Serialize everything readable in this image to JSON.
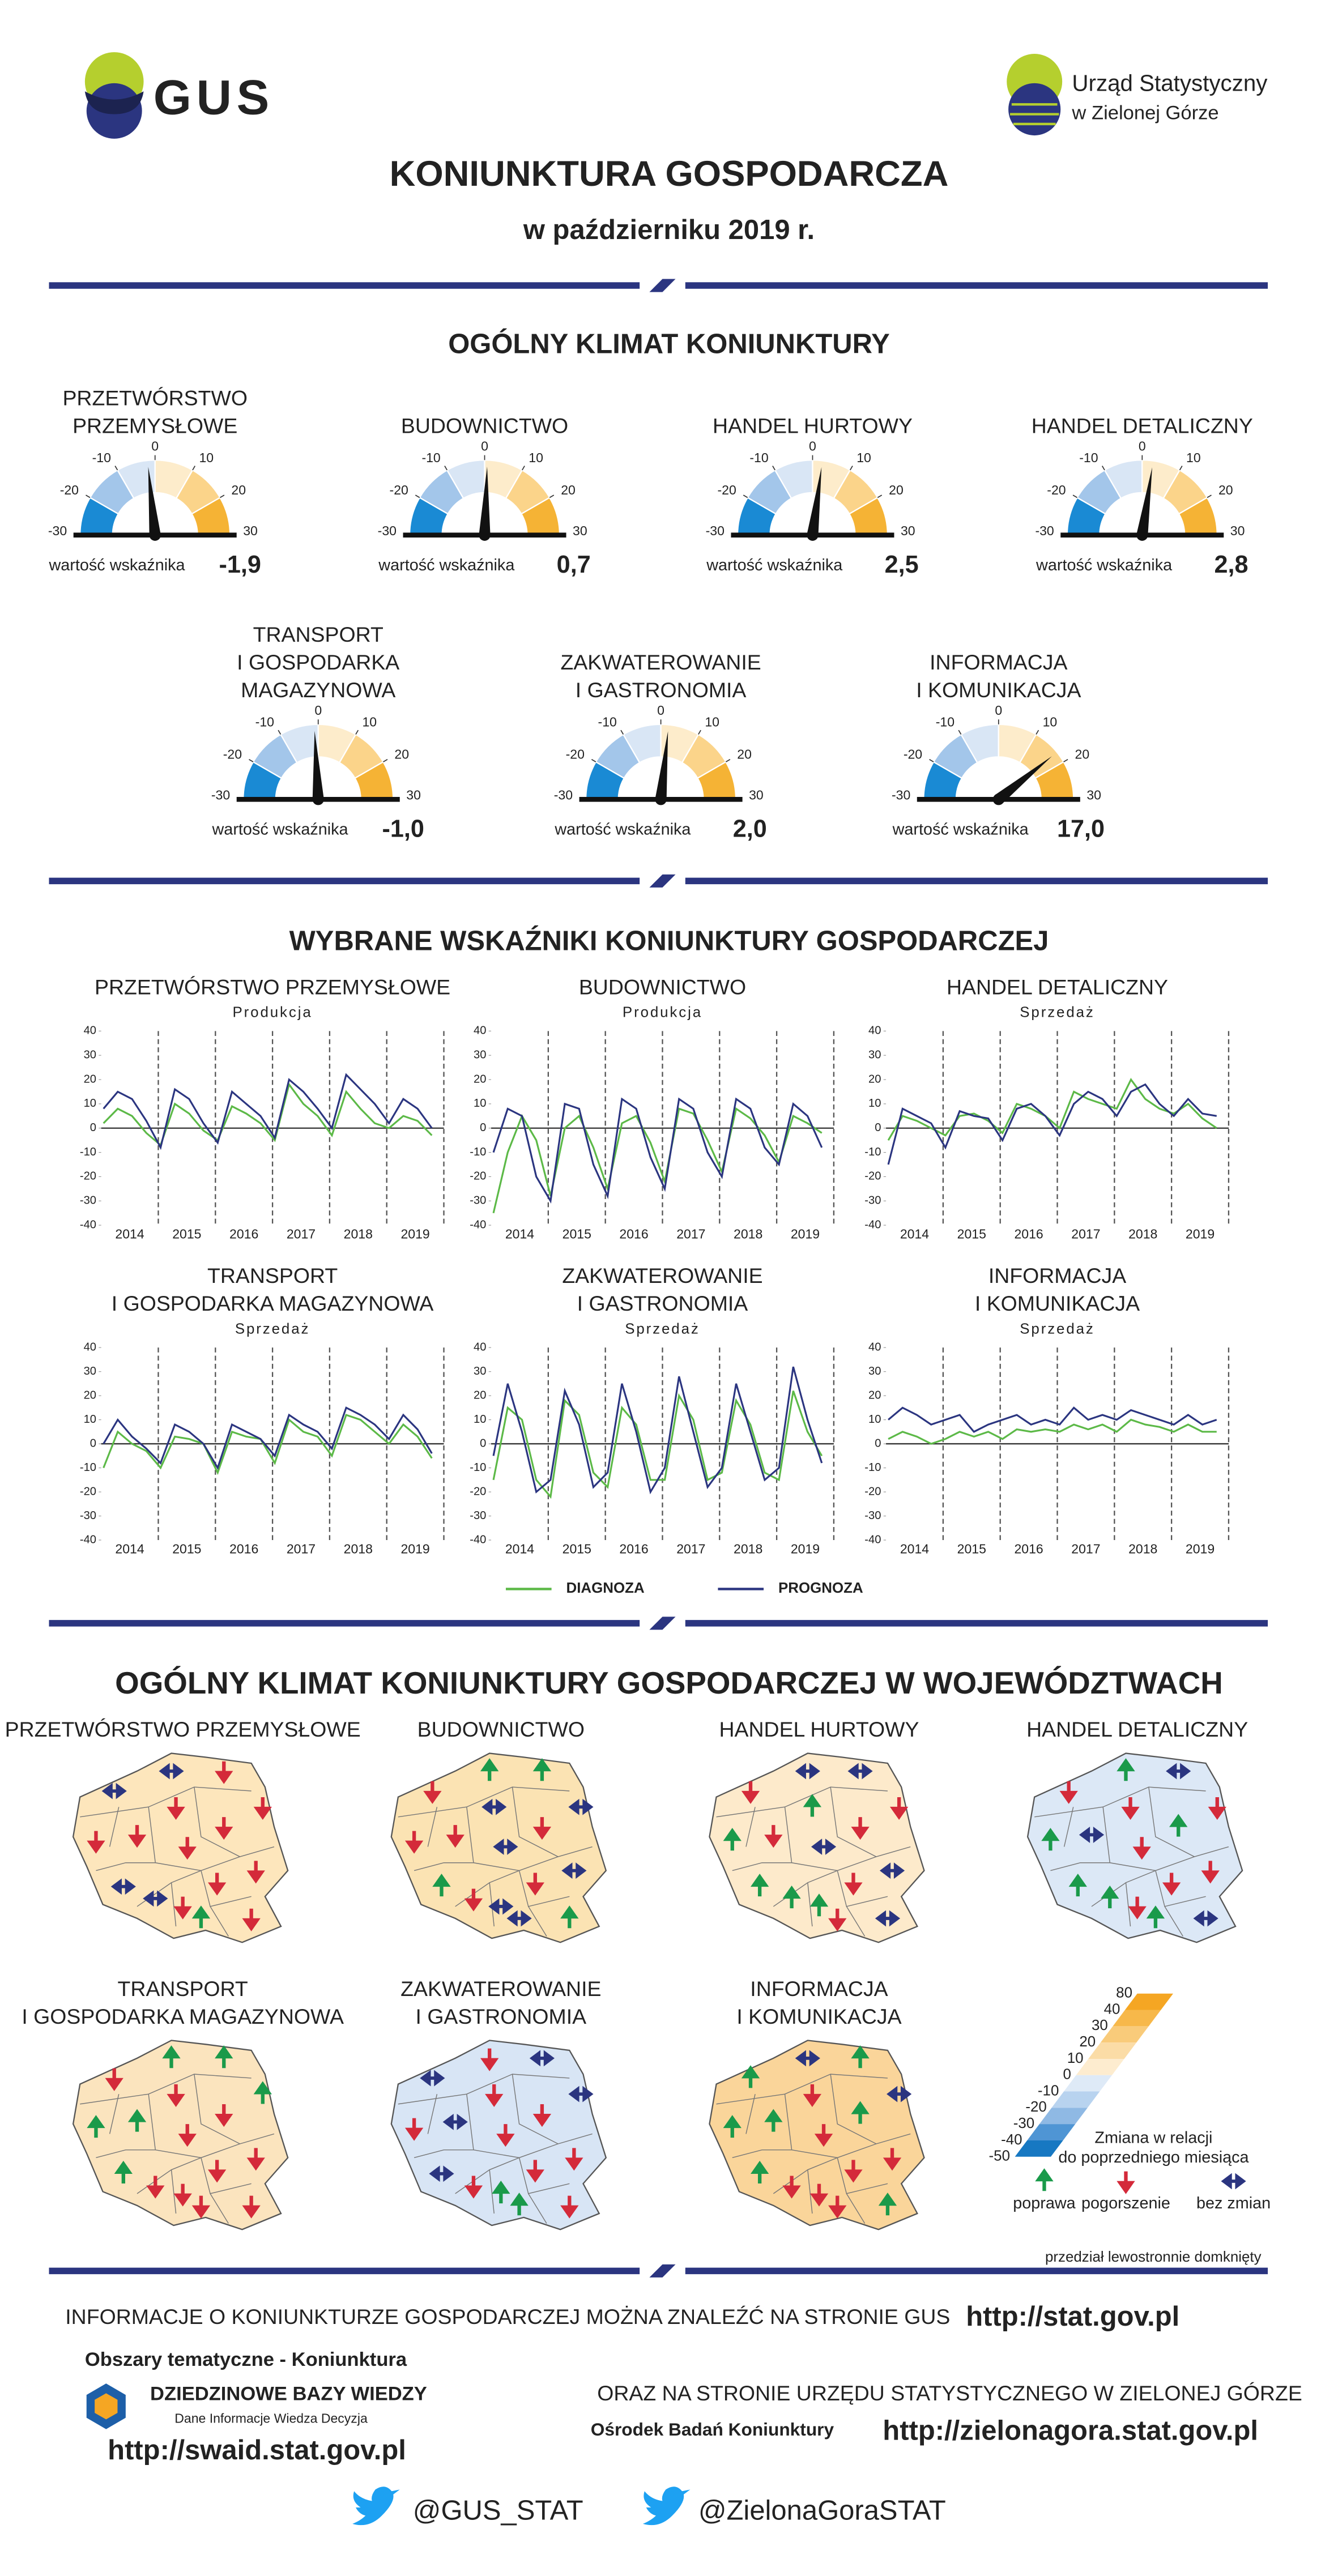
{
  "header": {
    "logo": "GUS",
    "office": [
      "Urząd Statystyczny",
      "w Zielonej Górze"
    ],
    "title": "KONIUNKTURA GOSPODARCZA",
    "subtitle": "w październiku 2019 r."
  },
  "gauges": {
    "title": "OGÓLNY KLIMAT KONIUNKTURY",
    "value_caption": "wartość wskaźnika",
    "lim": [
      -30,
      30
    ],
    "ticks": [
      -30,
      -20,
      -10,
      0,
      10,
      20,
      30
    ],
    "colors": [
      "#1a8ad4",
      "#a3c6ea",
      "#d9e6f5",
      "#fdeccb",
      "#fbd48a",
      "#f5b335"
    ],
    "items": [
      {
        "name": [
          "PRZETWÓRSTWO",
          "PRZEMYSŁOWE"
        ],
        "value": -1.9,
        "value_label": "-1,9"
      },
      {
        "name": [
          "BUDOWNICTWO"
        ],
        "value": 0.7,
        "value_label": "0,7"
      },
      {
        "name": [
          "HANDEL HURTOWY"
        ],
        "value": 2.5,
        "value_label": "2,5"
      },
      {
        "name": [
          "HANDEL DETALICZNY"
        ],
        "value": 2.8,
        "value_label": "2,8"
      },
      {
        "name": [
          "TRANSPORT",
          "I GOSPODARKA",
          "MAGAZYNOWA"
        ],
        "value": -1.0,
        "value_label": "-1,0"
      },
      {
        "name": [
          "ZAKWATEROWANIE",
          "I GASTRONOMIA"
        ],
        "value": 2.0,
        "value_label": "2,0"
      },
      {
        "name": [
          "INFORMACJA",
          "I KOMUNIKACJA"
        ],
        "value": 17.0,
        "value_label": "17,0"
      }
    ]
  },
  "indicators": {
    "title": "WYBRANE WSKAŹNIKI KONIUNKTURY GOSPODARCZEJ",
    "legend": [
      {
        "name": "DIAGNOZA",
        "color": "#5cb947"
      },
      {
        "name": "PROGNOZA",
        "color": "#2b3580"
      }
    ],
    "charts": [
      {
        "type": "line",
        "title": [
          "PRZETWÓRSTWO PRZEMYSŁOWE"
        ],
        "subtitle": "Produkcja",
        "categories": [
          "2014",
          "2015",
          "2016",
          "2017",
          "2018",
          "2019"
        ],
        "ylim": [
          -40,
          40
        ],
        "yticks": [
          40,
          30,
          20,
          10,
          0,
          -10,
          -20,
          -30,
          -40
        ],
        "series": [
          {
            "values": [
              2,
              8,
              5,
              -2,
              -7,
              10,
              6,
              -1,
              -5,
              9,
              6,
              2,
              -5,
              18,
              10,
              5,
              -3,
              15,
              8,
              2,
              0,
              5,
              3,
              -3
            ]
          },
          {
            "values": [
              8,
              15,
              12,
              3,
              -8,
              16,
              12,
              2,
              -6,
              15,
              10,
              5,
              -4,
              20,
              15,
              8,
              0,
              22,
              16,
              10,
              2,
              12,
              8,
              0
            ]
          }
        ]
      },
      {
        "type": "line",
        "title": [
          "BUDOWNICTWO"
        ],
        "subtitle": "Produkcja",
        "categories": [
          "2014",
          "2015",
          "2016",
          "2017",
          "2018",
          "2019"
        ],
        "ylim": [
          -40,
          40
        ],
        "yticks": [
          40,
          30,
          20,
          10,
          0,
          -10,
          -20,
          -30,
          -40
        ],
        "series": [
          {
            "values": [
              -35,
              -10,
              5,
              -5,
              -28,
              0,
              5,
              -8,
              -25,
              2,
              5,
              -6,
              -22,
              8,
              6,
              -5,
              -18,
              8,
              4,
              -3,
              -14,
              5,
              2,
              -2
            ]
          },
          {
            "values": [
              -10,
              8,
              5,
              -20,
              -30,
              10,
              8,
              -15,
              -28,
              12,
              8,
              -12,
              -25,
              12,
              8,
              -10,
              -20,
              12,
              8,
              -8,
              -15,
              10,
              5,
              -8
            ]
          }
        ]
      },
      {
        "type": "line",
        "title": [
          "HANDEL DETALICZNY"
        ],
        "subtitle": "Sprzedaż",
        "categories": [
          "2014",
          "2015",
          "2016",
          "2017",
          "2018",
          "2019"
        ],
        "ylim": [
          -40,
          40
        ],
        "yticks": [
          40,
          30,
          20,
          10,
          0,
          -10,
          -20,
          -30,
          -40
        ],
        "series": [
          {
            "values": [
              -5,
              5,
              3,
              0,
              -3,
              5,
              6,
              3,
              -2,
              10,
              8,
              5,
              0,
              15,
              12,
              10,
              8,
              20,
              12,
              8,
              6,
              10,
              4,
              0
            ]
          },
          {
            "values": [
              -15,
              8,
              5,
              2,
              -8,
              7,
              5,
              4,
              -5,
              8,
              10,
              5,
              -3,
              10,
              15,
              12,
              5,
              15,
              18,
              10,
              5,
              12,
              6,
              5
            ]
          }
        ]
      },
      {
        "type": "line",
        "title": [
          "TRANSPORT",
          "I GOSPODARKA MAGAZYNOWA"
        ],
        "subtitle": "Sprzedaż",
        "categories": [
          "2014",
          "2015",
          "2016",
          "2017",
          "2018",
          "2019"
        ],
        "ylim": [
          -40,
          40
        ],
        "yticks": [
          40,
          30,
          20,
          10,
          0,
          -10,
          -20,
          -30,
          -40
        ],
        "series": [
          {
            "values": [
              -10,
              5,
              0,
              -3,
              -10,
              3,
              2,
              0,
              -12,
              5,
              3,
              2,
              -8,
              10,
              5,
              3,
              -5,
              12,
              10,
              5,
              0,
              8,
              3,
              -6
            ]
          },
          {
            "values": [
              0,
              10,
              3,
              -2,
              -8,
              8,
              5,
              0,
              -10,
              8,
              5,
              2,
              -5,
              12,
              8,
              5,
              -2,
              15,
              12,
              8,
              2,
              12,
              6,
              -4
            ]
          }
        ]
      },
      {
        "type": "line",
        "title": [
          "ZAKWATEROWANIE",
          "I GASTRONOMIA"
        ],
        "subtitle": "Sprzedaż",
        "categories": [
          "2014",
          "2015",
          "2016",
          "2017",
          "2018",
          "2019"
        ],
        "ylim": [
          -40,
          40
        ],
        "yticks": [
          40,
          30,
          20,
          10,
          0,
          -10,
          -20,
          -30,
          -40
        ],
        "series": [
          {
            "values": [
              -15,
              15,
              10,
              -15,
              -22,
              18,
              12,
              -12,
              -18,
              15,
              8,
              -15,
              -15,
              20,
              10,
              -15,
              -12,
              18,
              8,
              -12,
              -15,
              22,
              5,
              -5
            ]
          },
          {
            "values": [
              -5,
              25,
              5,
              -20,
              -15,
              22,
              8,
              -18,
              -12,
              25,
              5,
              -20,
              -10,
              28,
              5,
              -18,
              -10,
              25,
              5,
              -15,
              -10,
              32,
              10,
              -8
            ]
          }
        ]
      },
      {
        "type": "line",
        "title": [
          "INFORMACJA",
          "I KOMUNIKACJA"
        ],
        "subtitle": "Sprzedaż",
        "categories": [
          "2014",
          "2015",
          "2016",
          "2017",
          "2018",
          "2019"
        ],
        "ylim": [
          -40,
          40
        ],
        "yticks": [
          40,
          30,
          20,
          10,
          0,
          -10,
          -20,
          -30,
          -40
        ],
        "series": [
          {
            "values": [
              2,
              5,
              3,
              0,
              2,
              5,
              3,
              5,
              2,
              6,
              5,
              6,
              5,
              8,
              6,
              8,
              5,
              10,
              8,
              7,
              5,
              8,
              5,
              5
            ]
          },
          {
            "values": [
              10,
              15,
              12,
              8,
              10,
              12,
              5,
              8,
              10,
              12,
              8,
              10,
              8,
              15,
              10,
              12,
              10,
              14,
              12,
              10,
              8,
              12,
              8,
              10
            ]
          }
        ]
      }
    ]
  },
  "regions": {
    "title": "OGÓLNY KLIMAT KONIUNKTURY GOSPODARCZEJ W WOJEWÓDZTWACH",
    "maps": [
      {
        "title": [
          "PRZETWÓRSTWO PRZEMYSŁOWE"
        ],
        "color": "#fde6bc",
        "arrows": [
          "flat",
          "flat",
          "down",
          "down",
          "down",
          "down",
          "down",
          "down",
          "down",
          "down",
          "flat",
          "flat",
          "down",
          "down",
          "up",
          "down"
        ]
      },
      {
        "title": [
          "BUDOWNICTWO"
        ],
        "color": "#fbe3b3",
        "arrows": [
          "down",
          "up",
          "up",
          "flat",
          "down",
          "down",
          "flat",
          "down",
          "flat",
          "flat",
          "up",
          "down",
          "flat",
          "down",
          "flat",
          "up"
        ]
      },
      {
        "title": [
          "HANDEL HURTOWY"
        ],
        "color": "#fdeacb",
        "arrows": [
          "down",
          "flat",
          "flat",
          "down",
          "up",
          "down",
          "up",
          "down",
          "flat",
          "flat",
          "up",
          "up",
          "up",
          "down",
          "down",
          "flat"
        ]
      },
      {
        "title": [
          "HANDEL DETALICZNY"
        ],
        "color": "#dce8f6",
        "arrows": [
          "down",
          "up",
          "flat",
          "down",
          "up",
          "flat",
          "down",
          "up",
          "down",
          "down",
          "up",
          "up",
          "down",
          "down",
          "up",
          "flat"
        ]
      },
      {
        "title": [
          "TRANSPORT",
          "I GOSPODARKA MAGAZYNOWA"
        ],
        "color": "#fbe4be",
        "arrows": [
          "down",
          "up",
          "up",
          "up",
          "up",
          "up",
          "down",
          "down",
          "down",
          "down",
          "up",
          "down",
          "down",
          "down",
          "down",
          "down"
        ]
      },
      {
        "title": [
          "ZAKWATEROWANIE",
          "I GASTRONOMIA"
        ],
        "color": "#d8e5f5",
        "arrows": [
          "flat",
          "down",
          "flat",
          "flat",
          "down",
          "flat",
          "down",
          "down",
          "down",
          "down",
          "flat",
          "down",
          "up",
          "down",
          "up",
          "down"
        ]
      },
      {
        "title": [
          "INFORMACJA",
          "I KOMUNIKACJA"
        ],
        "color": "#fad59a",
        "arrows": [
          "up",
          "flat",
          "up",
          "flat",
          "up",
          "up",
          "down",
          "up",
          "down",
          "down",
          "up",
          "down",
          "down",
          "down",
          "down",
          "up"
        ]
      }
    ],
    "legend": {
      "ticks": [
        80,
        40,
        30,
        20,
        10,
        0,
        -10,
        -20,
        -30,
        -40,
        -50
      ],
      "colors": [
        "#f5a623",
        "#f7b84a",
        "#f9cb7a",
        "#fbdca6",
        "#fdeccf",
        "#deeaf7",
        "#b8d3ef",
        "#8fb9e4",
        "#4f95d4",
        "#1778c2"
      ],
      "caption": [
        "Zmiana w relacji",
        "do poprzedniego miesiąca"
      ],
      "arrows": [
        {
          "label": "poprawa",
          "kind": "up"
        },
        {
          "label": "pogorszenie",
          "kind": "down"
        },
        {
          "label": "bez zmian",
          "kind": "flat"
        }
      ],
      "note": "przedział lewostronnie domknięty"
    }
  },
  "footer": {
    "info": "INFORMACJE O KONIUNKTURZE GOSPODARCZEJ MOŻNA ZNALEŹĆ NA STRONIE GUS",
    "gus_url": "http://stat.gov.pl",
    "topics": "Obszary tematyczne - Koniunktura",
    "dbw": "DZIEDZINOWE BAZY WIEDZY",
    "dbw_motto": "Dane   Informacje   Wiedza   Decyzja",
    "swaid_url": "http://swaid.stat.gov.pl",
    "office_info": "ORAZ NA STRONIE URZĘDU STATYSTYCZNEGO W ZIELONEJ GÓRZE",
    "obk": "Ośrodek Badań Koniunktury",
    "office_url": "http://zielonagora.stat.gov.pl",
    "twitter": [
      "@GUS_STAT",
      "@ZielonaGoraSTAT"
    ]
  }
}
